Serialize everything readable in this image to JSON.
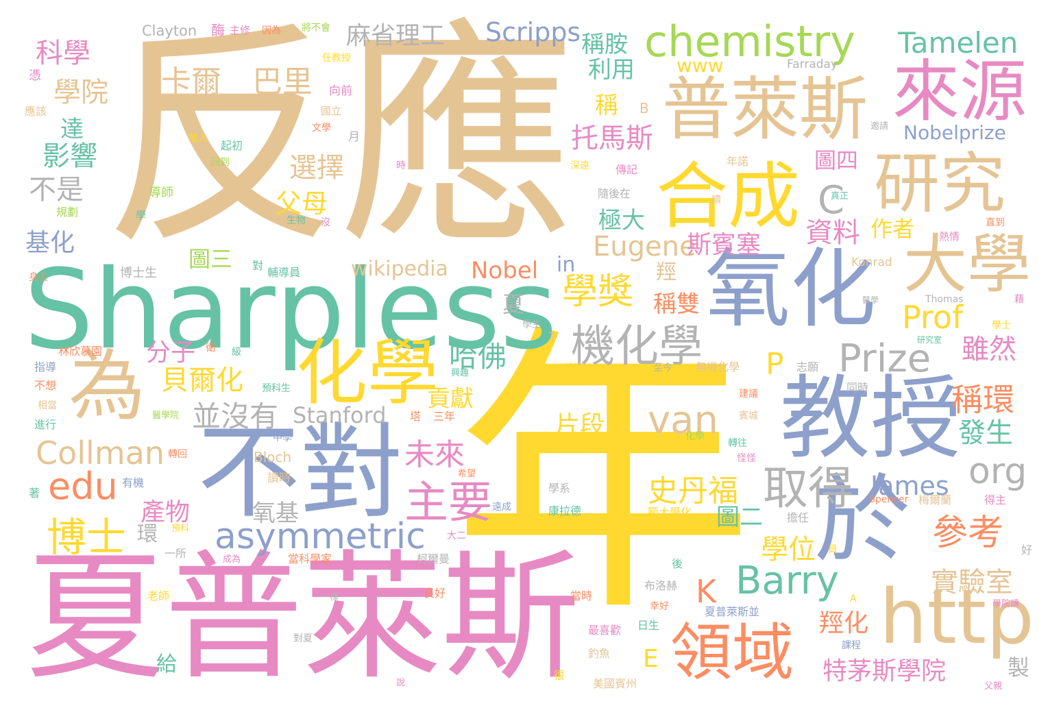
{
  "palette": [
    "#E5C494",
    "#FFD92F",
    "#66C2A5",
    "#8DA0CB",
    "#E78AC3",
    "#FC8D62",
    "#A6D854",
    "#B3B3B3"
  ],
  "words": [
    {
      "t": "反應",
      "c": 0
    },
    {
      "t": "年",
      "c": 1
    },
    {
      "t": "夏普萊斯",
      "c": 4
    },
    {
      "t": "Sharpless",
      "c": 2
    },
    {
      "t": "不對",
      "c": 3
    },
    {
      "t": "教授",
      "c": 3
    },
    {
      "t": "氧化",
      "c": 3
    },
    {
      "t": "普萊斯",
      "c": 0
    },
    {
      "t": "化學",
      "c": 1
    },
    {
      "t": "為",
      "c": 0
    },
    {
      "t": "於",
      "c": 3
    },
    {
      "t": "研究",
      "c": 0
    },
    {
      "t": "來源",
      "c": 4
    },
    {
      "t": "大學",
      "c": 0
    },
    {
      "t": "合成",
      "c": 1
    },
    {
      "t": "領域",
      "c": 5
    },
    {
      "t": "http",
      "c": 0
    },
    {
      "t": "chemistry",
      "c": 6
    },
    {
      "t": "asymmetric",
      "c": 3
    },
    {
      "t": "Prize",
      "c": 7
    },
    {
      "t": "機化學",
      "c": 7
    },
    {
      "t": "Barry",
      "c": 2
    },
    {
      "t": "取得",
      "c": 7
    },
    {
      "t": "主要",
      "c": 4
    },
    {
      "t": "van",
      "c": 0
    },
    {
      "t": "學獎",
      "c": 1
    },
    {
      "t": "參考",
      "c": 5
    },
    {
      "t": "博士",
      "c": 1
    },
    {
      "t": "edu",
      "c": 5
    },
    {
      "t": "Collman",
      "c": 0
    },
    {
      "t": "Tamelen",
      "c": 2
    },
    {
      "t": "Scripps",
      "c": 3
    },
    {
      "t": "麻省理工",
      "c": 7
    },
    {
      "t": "卡爾",
      "c": 0
    },
    {
      "t": "巴里",
      "c": 0
    },
    {
      "t": "科學",
      "c": 4
    },
    {
      "t": "學院",
      "c": 0
    },
    {
      "t": "影響",
      "c": 2
    },
    {
      "t": "不是",
      "c": 7
    },
    {
      "t": "基化",
      "c": 3
    },
    {
      "t": "選擇",
      "c": 0
    },
    {
      "t": "父母",
      "c": 1
    },
    {
      "t": "托馬斯",
      "c": 4
    },
    {
      "t": "稱胺",
      "c": 2
    },
    {
      "t": "利用",
      "c": 2
    },
    {
      "t": "稱",
      "c": 1
    },
    {
      "t": "極大",
      "c": 2
    },
    {
      "t": "Eugene",
      "c": 0
    },
    {
      "t": "斯賓塞",
      "c": 4
    },
    {
      "t": "資料",
      "c": 4
    },
    {
      "t": "作者",
      "c": 1
    },
    {
      "t": "圖四",
      "c": 4
    },
    {
      "t": "Nobelprize",
      "c": 3
    },
    {
      "t": "org",
      "c": 7
    },
    {
      "t": "James",
      "c": 3
    },
    {
      "t": "Nobel",
      "c": 5
    },
    {
      "t": "wikipedia",
      "c": 0
    },
    {
      "t": "圖三",
      "c": 6
    },
    {
      "t": "哈佛",
      "c": 2
    },
    {
      "t": "分子",
      "c": 4
    },
    {
      "t": "貝爾化",
      "c": 1
    },
    {
      "t": "並沒有",
      "c": 7
    },
    {
      "t": "Stanford",
      "c": 7
    },
    {
      "t": "未來",
      "c": 4
    },
    {
      "t": "片段",
      "c": 1
    },
    {
      "t": "史丹福",
      "c": 1
    },
    {
      "t": "氧基",
      "c": 7
    },
    {
      "t": "圖二",
      "c": 2
    },
    {
      "t": "產物",
      "c": 4
    },
    {
      "t": "學位",
      "c": 1
    },
    {
      "t": "實驗室",
      "c": 0
    },
    {
      "t": "稱環",
      "c": 5
    },
    {
      "t": "雖然",
      "c": 4
    },
    {
      "t": "發生",
      "c": 2
    },
    {
      "t": "特茅斯學院",
      "c": 4
    },
    {
      "t": "羥化",
      "c": 5
    },
    {
      "t": "貢獻",
      "c": 1
    },
    {
      "t": "稱雙",
      "c": 5
    },
    {
      "t": "Prof",
      "c": 1
    },
    {
      "t": "P",
      "c": 1
    },
    {
      "t": "K",
      "c": 5
    },
    {
      "t": "E",
      "c": 1
    },
    {
      "t": "C",
      "c": 7
    },
    {
      "t": "in",
      "c": 3
    },
    {
      "t": "www",
      "c": 1
    },
    {
      "t": "Clayton",
      "c": 7
    },
    {
      "t": "夏",
      "c": 7
    },
    {
      "t": "羥",
      "c": 0
    },
    {
      "t": "達",
      "c": 2
    },
    {
      "t": "環",
      "c": 7
    },
    {
      "t": "給",
      "c": 2
    },
    {
      "t": "製",
      "c": 7
    },
    {
      "t": "Farraday",
      "c": 7
    },
    {
      "t": "Konrad",
      "c": 0
    },
    {
      "t": "Thomas",
      "c": 7
    },
    {
      "t": "Bloch",
      "c": 0
    },
    {
      "t": "Spencer",
      "c": 5
    },
    {
      "t": "B",
      "c": 0
    },
    {
      "t": "A",
      "c": 1
    },
    {
      "t": "酶",
      "c": 4
    },
    {
      "t": "主修",
      "c": 4
    },
    {
      "t": "因為",
      "c": 5
    },
    {
      "t": "將不會",
      "c": 6
    },
    {
      "t": "任教授",
      "c": 1
    },
    {
      "t": "向前",
      "c": 4
    },
    {
      "t": "國立",
      "c": 0
    },
    {
      "t": "文學",
      "c": 5
    },
    {
      "t": "月",
      "c": 7
    },
    {
      "t": "憑",
      "c": 4
    },
    {
      "t": "應該",
      "c": 0
    },
    {
      "t": "加入",
      "c": 1
    },
    {
      "t": "起初",
      "c": 2
    },
    {
      "t": "回到",
      "c": 6
    },
    {
      "t": "時",
      "c": 4
    },
    {
      "t": "深遠",
      "c": 1
    },
    {
      "t": "傳記",
      "c": 4
    },
    {
      "t": "年諾",
      "c": 0
    },
    {
      "t": "隨後在",
      "c": 7
    },
    {
      "t": "讀",
      "c": 0
    },
    {
      "t": "導師",
      "c": 6
    },
    {
      "t": "規劃",
      "c": 6
    },
    {
      "t": "學",
      "c": 2
    },
    {
      "t": "生物",
      "c": 2
    },
    {
      "t": "沒",
      "c": 4
    },
    {
      "t": "真正",
      "c": 2
    },
    {
      "t": "熱情",
      "c": 4
    },
    {
      "t": "直到",
      "c": 5
    },
    {
      "t": "身上",
      "c": 5
    },
    {
      "t": "博士生",
      "c": 7
    },
    {
      "t": "對",
      "c": 2
    },
    {
      "t": "輔導員",
      "c": 2
    },
    {
      "t": "醫學",
      "c": 7
    },
    {
      "t": "學士",
      "c": 1
    },
    {
      "t": "藉",
      "c": 4
    },
    {
      "t": "研究室",
      "c": 2
    },
    {
      "t": "學生",
      "c": 7
    },
    {
      "t": "下",
      "c": 0
    },
    {
      "t": "林欣慕園",
      "c": 5
    },
    {
      "t": "衛",
      "c": 5
    },
    {
      "t": "級",
      "c": 2
    },
    {
      "t": "指導",
      "c": 3
    },
    {
      "t": "不想",
      "c": 5
    },
    {
      "t": "相當",
      "c": 0
    },
    {
      "t": "進行",
      "c": 2
    },
    {
      "t": "預科生",
      "c": 2
    },
    {
      "t": "醫學院",
      "c": 6
    },
    {
      "t": "塔",
      "c": 5
    },
    {
      "t": "三年",
      "c": 5
    },
    {
      "t": "任教",
      "c": 1
    },
    {
      "t": "至今",
      "c": 7
    },
    {
      "t": "無機化學",
      "c": 0
    },
    {
      "t": "志願",
      "c": 7
    },
    {
      "t": "同時",
      "c": 7
    },
    {
      "t": "建議",
      "c": 5
    },
    {
      "t": "賓城",
      "c": 0
    },
    {
      "t": "中學",
      "c": 3
    },
    {
      "t": "轉回",
      "c": 5
    },
    {
      "t": "轉往",
      "c": 2
    },
    {
      "t": "讀時",
      "c": 0
    },
    {
      "t": "有機",
      "c": 3
    },
    {
      "t": "著",
      "c": 2
    },
    {
      "t": "學系",
      "c": 7
    },
    {
      "t": "康拉德",
      "c": 2
    },
    {
      "t": "遠成",
      "c": 3
    },
    {
      "t": "範大學化",
      "c": 1
    },
    {
      "t": "擔任",
      "c": 7
    },
    {
      "t": "梅爾蘭",
      "c": 0
    },
    {
      "t": "得主",
      "c": 4
    },
    {
      "t": "好",
      "c": 7
    },
    {
      "t": "一所",
      "c": 7
    },
    {
      "t": "大二",
      "c": 4
    },
    {
      "t": "當科學家",
      "c": 5
    },
    {
      "t": "柯爾曼",
      "c": 7
    },
    {
      "t": "成為",
      "c": 4
    },
    {
      "t": "員",
      "c": 1
    },
    {
      "t": "後",
      "c": 2
    },
    {
      "t": "布洛赫",
      "c": 7
    },
    {
      "t": "老師",
      "c": 1
    },
    {
      "t": "一樣",
      "c": 7
    },
    {
      "t": "良好",
      "c": 5
    },
    {
      "t": "當時",
      "c": 5
    },
    {
      "t": "幸好",
      "c": 5
    },
    {
      "t": "夏普萊斯並",
      "c": 3
    },
    {
      "t": "最喜歡",
      "c": 4
    },
    {
      "t": "日生",
      "c": 2
    },
    {
      "t": "課程",
      "c": 3
    },
    {
      "t": "釣魚",
      "c": 0
    },
    {
      "t": "很",
      "c": 1
    },
    {
      "t": "美國賓州",
      "c": 0
    },
    {
      "t": "說",
      "c": 4
    },
    {
      "t": "父親",
      "c": 4
    },
    {
      "t": "對夏",
      "c": 7
    },
    {
      "t": "希望",
      "c": 5
    },
    {
      "t": "學院讀",
      "c": 4
    },
    {
      "t": "預科",
      "c": 1
    },
    {
      "t": "化學",
      "c": 6
    },
    {
      "t": "怪怪",
      "c": 4
    },
    {
      "t": "興趣",
      "c": 2
    },
    {
      "t": "邀請",
      "c": 7
    }
  ]
}
